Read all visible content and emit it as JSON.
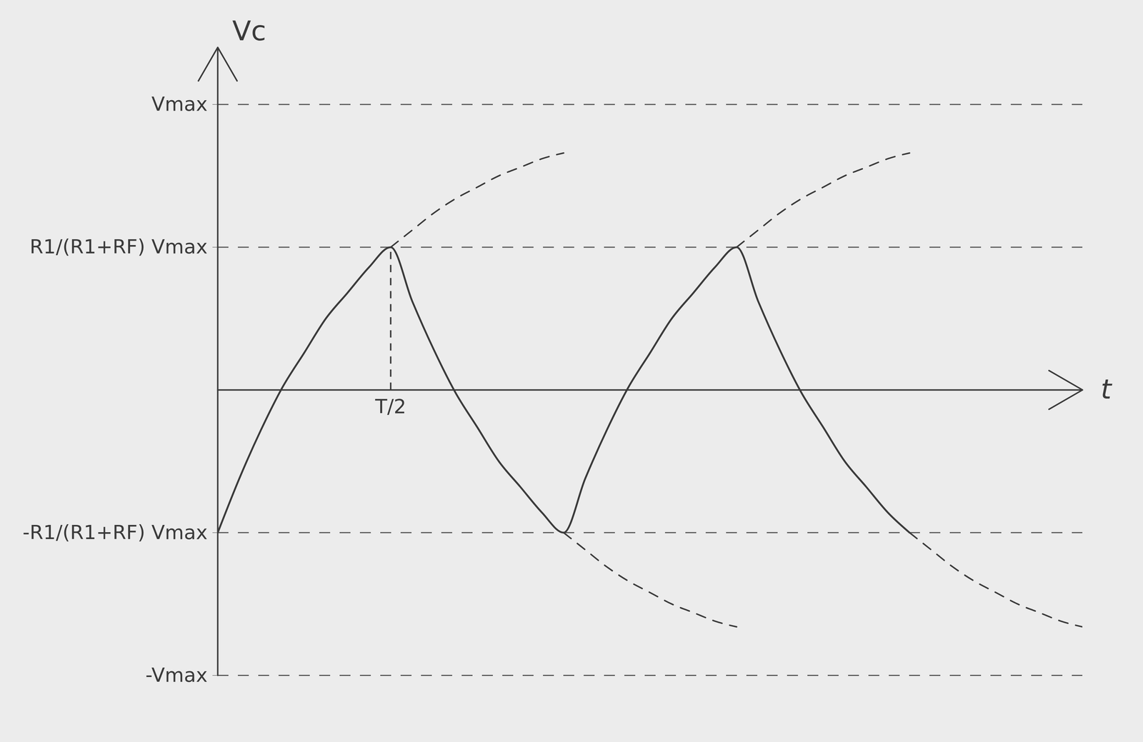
{
  "chart_data": {
    "type": "line",
    "x_label": "t",
    "y_label": "Vc",
    "x": [
      0,
      0.125,
      0.25,
      0.375,
      0.5,
      0.625,
      0.75,
      0.875,
      1,
      1.125,
      1.25,
      1.375,
      1.5,
      1.625,
      1.75,
      1.875,
      2,
      2.125,
      2.25,
      2.375,
      2.5,
      2.625,
      2.75,
      2.875,
      3,
      3.125,
      3.25,
      3.375,
      3.5,
      3.625,
      3.75,
      3.875,
      4,
      4.125,
      4.25,
      4.375,
      4.5,
      4.625,
      4.75,
      4.875,
      5
    ],
    "xlim": [
      0,
      5
    ],
    "ylim": [
      -1,
      1.2
    ],
    "xticks": [
      {
        "value": 1,
        "label": "T/2"
      }
    ],
    "yticks": [
      {
        "value": -1,
        "label": "-Vmax"
      },
      {
        "value": -0.5,
        "label": "-R1/(R1+RF) Vmax"
      },
      {
        "value": 0.5,
        "label": "R1/(R1+RF) Vmax"
      },
      {
        "value": 1,
        "label": "Vmax"
      }
    ],
    "grid": true,
    "series": [
      {
        "color": "#3a3a3a",
        "line_style": "solid",
        "values": [
          -0.5,
          -0.31,
          -0.14,
          0.01,
          0.13,
          0.25,
          0.34,
          0.43,
          0.5,
          0.31,
          0.14,
          -0.01,
          -0.13,
          -0.25,
          -0.34,
          -0.43,
          -0.5,
          -0.31,
          -0.14,
          0.01,
          0.13,
          0.25,
          0.34,
          0.43,
          0.5,
          0.31,
          0.14,
          -0.01,
          -0.13,
          -0.25,
          -0.34,
          -0.43,
          -0.5,
          null,
          null,
          null,
          null,
          null,
          null,
          null,
          null
        ]
      },
      {
        "color": "#3a3a3a",
        "line_style": "dashed",
        "values": [
          null,
          null,
          null,
          null,
          null,
          null,
          null,
          null,
          0.5,
          0.56,
          0.62,
          0.67,
          0.71,
          0.75,
          0.78,
          0.81,
          0.83,
          null,
          null,
          null,
          null,
          null,
          null,
          null,
          0.5,
          0.56,
          0.62,
          0.67,
          0.71,
          0.75,
          0.78,
          0.81,
          0.83,
          null,
          null,
          null,
          null,
          null,
          null,
          null,
          null
        ]
      },
      {
        "color": "#3a3a3a",
        "line_style": "dashed",
        "values": [
          null,
          null,
          null,
          null,
          null,
          null,
          null,
          null,
          null,
          null,
          null,
          null,
          null,
          null,
          null,
          null,
          -0.5,
          -0.56,
          -0.62,
          -0.67,
          -0.71,
          -0.75,
          -0.78,
          -0.81,
          -0.83,
          null,
          null,
          null,
          null,
          null,
          null,
          null,
          -0.5,
          -0.56,
          -0.62,
          -0.67,
          -0.71,
          -0.75,
          -0.78,
          -0.81,
          -0.83
        ]
      }
    ]
  }
}
